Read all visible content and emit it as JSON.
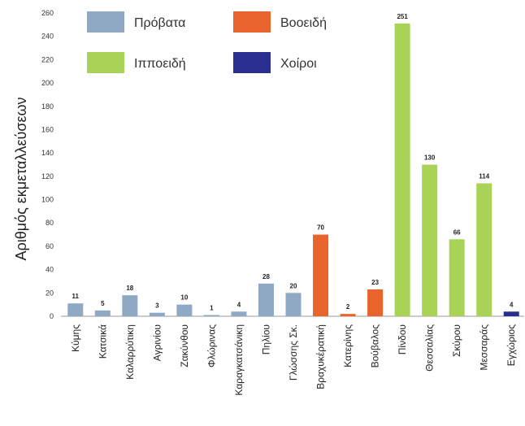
{
  "chart_data": {
    "type": "bar",
    "ylabel": "Αριθμός εκμεταλλεύσεων",
    "xlabel": "",
    "ylim": [
      0,
      260
    ],
    "yticks": [
      0,
      20,
      40,
      60,
      80,
      100,
      120,
      140,
      160,
      180,
      200,
      220,
      240,
      260
    ],
    "grid": false,
    "legend_position": "top",
    "legend": [
      {
        "name": "Πρόβατα",
        "color": "#8fa9c4"
      },
      {
        "name": "Βοοειδή",
        "color": "#e8642c"
      },
      {
        "name": "Ιπποειδή",
        "color": "#a8d356"
      },
      {
        "name": "Χοίροι",
        "color": "#2a2f8f"
      }
    ],
    "bars": [
      {
        "category": "Κύμης",
        "value": 11,
        "label": "11",
        "group": 0
      },
      {
        "category": "Κατσικά",
        "value": 5,
        "label": "5",
        "group": 0
      },
      {
        "category": "Καλαρρύτικη",
        "value": 18,
        "label": "18",
        "group": 0
      },
      {
        "category": "Αγρινίου",
        "value": 3,
        "label": "3",
        "group": 0
      },
      {
        "category": "Ζακύνθου",
        "value": 10,
        "label": "10",
        "group": 0
      },
      {
        "category": "Φλώρινας",
        "value": 1,
        "label": "1",
        "group": 0
      },
      {
        "category": "Καραγκατσάνικη",
        "value": 4,
        "label": "4",
        "group": 0
      },
      {
        "category": "Πηλίου",
        "value": 28,
        "label": "28",
        "group": 0
      },
      {
        "category": "Γλώσσης Σκ.",
        "value": 20,
        "label": "20",
        "group": 0
      },
      {
        "category": "Βραχυκέρατική",
        "value": 70,
        "label": "70",
        "group": 1
      },
      {
        "category": "Κατερίνης",
        "value": 2,
        "label": "2",
        "group": 1
      },
      {
        "category": "Βούβαλος",
        "value": 23,
        "label": "23",
        "group": 1
      },
      {
        "category": "Πίνδου",
        "value": 251,
        "label": "251",
        "group": 2
      },
      {
        "category": "Θεσσαλίας",
        "value": 130,
        "label": "130",
        "group": 2
      },
      {
        "category": "Σκύρου",
        "value": 66,
        "label": "66",
        "group": 2
      },
      {
        "category": "Μεσσαράς",
        "value": 114,
        "label": "114",
        "group": 2
      },
      {
        "category": "Εγχώριος",
        "value": 4,
        "label": "4",
        "group": 3
      }
    ]
  }
}
